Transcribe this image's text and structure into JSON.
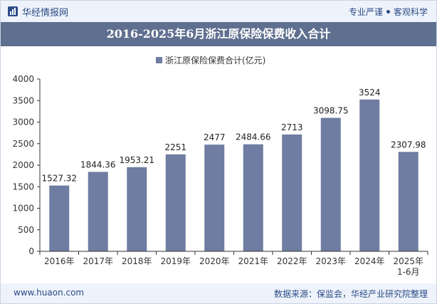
{
  "header": {
    "brand": "华经情报网",
    "slogan_left": "专业严谨",
    "slogan_right": "客观科学"
  },
  "footer": {
    "site": "www.huaon.com",
    "source": "数据来源：保监会，华经产业研究院整理"
  },
  "colors": {
    "bar": "#6e7da1",
    "title_bg": "#5f6f8f",
    "bar_light": "#eef3fb",
    "text": "#2b4a86"
  },
  "chart_data": {
    "type": "bar",
    "title": "2016-2025年6月浙江原保险保费收入合计",
    "categories": [
      "2016年",
      "2017年",
      "2018年",
      "2019年",
      "2020年",
      "2021年",
      "2022年",
      "2023年",
      "2024年",
      "2025年\n1-6月"
    ],
    "series": [
      {
        "name": "浙江原保险保费合计(亿元)",
        "values": [
          1527.32,
          1844.36,
          1953.21,
          2251,
          2477,
          2484.66,
          2713,
          3098.75,
          3524,
          2307.98
        ],
        "labels": [
          "1527.32",
          "1844.36",
          "1953.21",
          "2251",
          "2477",
          "2484.66",
          "2713",
          "3098.75",
          "3524",
          "2307.98"
        ]
      }
    ],
    "ylim": [
      0,
      4000
    ],
    "yticks": [
      0,
      500,
      1000,
      1500,
      2000,
      2500,
      3000,
      3500,
      4000
    ],
    "legend": "top-center",
    "grid": false
  }
}
